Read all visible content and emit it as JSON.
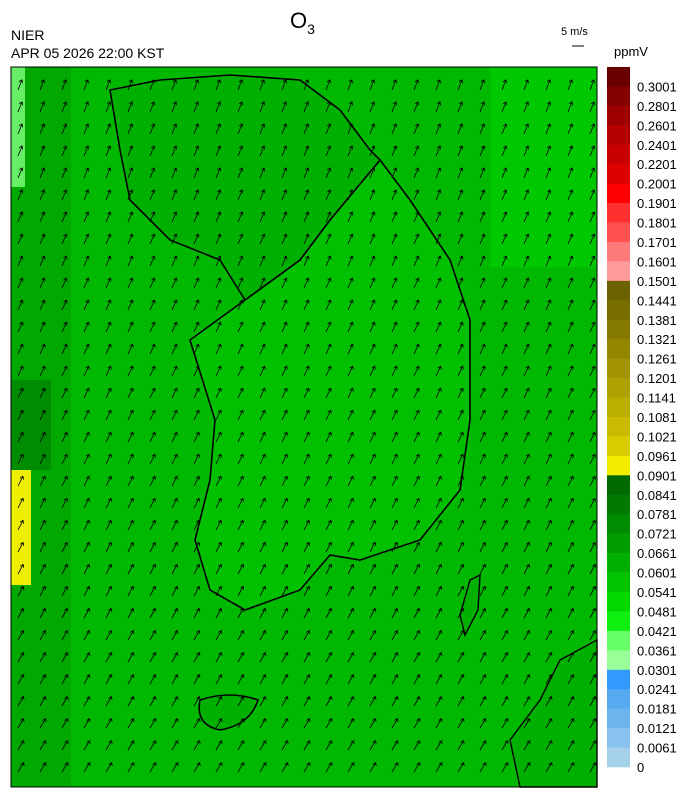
{
  "header": {
    "title": "O",
    "title_subscript": "3",
    "source": "NIER",
    "datetime": "APR 05 2026 22:00 KST",
    "wind_scale": "5 m/s"
  },
  "legend": {
    "unit": "ppmV",
    "labels": [
      "0.3001",
      "0.2801",
      "0.2601",
      "0.2401",
      "0.2201",
      "0.2001",
      "0.1901",
      "0.1801",
      "0.1701",
      "0.1601",
      "0.1501",
      "0.1441",
      "0.1381",
      "0.1321",
      "0.1261",
      "0.1201",
      "0.1141",
      "0.1081",
      "0.1021",
      "0.0961",
      "0.0901",
      "0.0841",
      "0.0781",
      "0.0721",
      "0.0661",
      "0.0601",
      "0.0541",
      "0.0481",
      "0.0421",
      "0.0361",
      "0.0301",
      "0.0241",
      "0.0181",
      "0.0121",
      "0.0061",
      "0"
    ],
    "colors": [
      "#6b0000",
      "#850000",
      "#9e0000",
      "#b50000",
      "#c80000",
      "#dd0000",
      "#ff0000",
      "#ff3030",
      "#ff5050",
      "#ff7a7a",
      "#ff9a9a",
      "#6b6200",
      "#786e00",
      "#857a00",
      "#938700",
      "#a19400",
      "#aea100",
      "#bcae00",
      "#c9bc00",
      "#d8cb00",
      "#f2ec00",
      "#006a00",
      "#007a00",
      "#008c00",
      "#009e00",
      "#00b000",
      "#00c400",
      "#00d800",
      "#10f010",
      "#66ff66",
      "#99ff99",
      "#3399ff",
      "#55aaf0",
      "#6cb4ee",
      "#88c2ee",
      "#a4d0ea"
    ]
  }
}
